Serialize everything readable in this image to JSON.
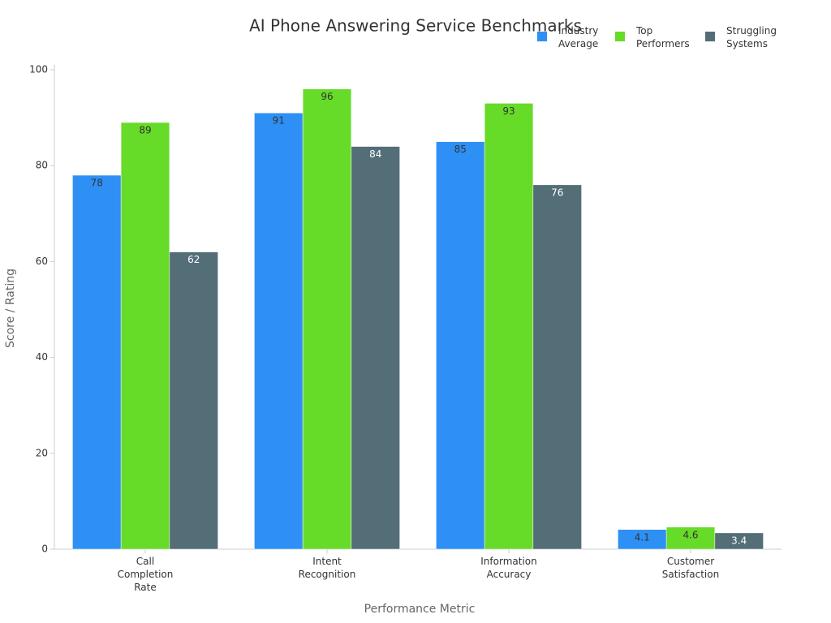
{
  "chart_data": {
    "type": "bar",
    "title": "AI Phone Answering Service Benchmarks",
    "x_label": "Performance Metric",
    "y_label": "Score / Rating",
    "categories": [
      "Call Completion Rate",
      "Intent Recognition",
      "Information Accuracy",
      "Customer Satisfaction"
    ],
    "series": [
      {
        "name": "Industry Average",
        "color": "#2e90f5",
        "values": [
          78,
          91,
          85,
          4.1
        ]
      },
      {
        "name": "Top Performers",
        "color": "#66db28",
        "values": [
          89,
          96,
          93,
          4.6
        ]
      },
      {
        "name": "Struggling Systems",
        "color": "#546e78",
        "values": [
          62,
          84,
          76,
          3.4
        ]
      }
    ],
    "ylim": [
      0,
      100
    ],
    "yticks": [
      0,
      20,
      40,
      60,
      80,
      100
    ],
    "legend": "top-right"
  }
}
